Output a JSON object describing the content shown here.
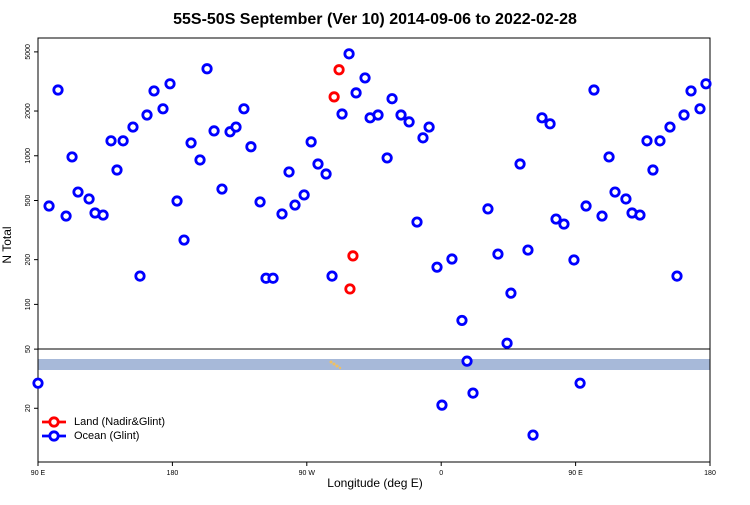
{
  "chart_data": {
    "type": "scatter",
    "title": "55S-50S September (Ver 10)   2014-09-06 to 2022-02-28",
    "x_label": "Longitude (deg E)",
    "y_label": "N Total",
    "xlim": [
      90,
      540
    ],
    "xticks": [
      {
        "value": 90,
        "label": "90 E"
      },
      180,
      {
        "value": 270,
        "label": "90 W"
      },
      {
        "value": 360,
        "label": "0"
      },
      {
        "value": 450,
        "label": "90 E"
      },
      {
        "value": 540,
        "label": "180"
      }
    ],
    "ylim": [
      8.7,
      6200
    ],
    "yticks": [
      20,
      50,
      100,
      200,
      500,
      1000,
      2000,
      5000
    ],
    "log_y": true,
    "legend": "bottom-left",
    "series": [
      {
        "name": "Land (Nadir&Glint)",
        "color": "#ff0000",
        "x": [
          291.6,
          288.3,
          300.9,
          298.9
        ],
        "values": [
          3790,
          2490,
          212,
          127
        ]
      },
      {
        "name": "Ocean (Glint)",
        "color": "#0000ff",
        "x": [
          90,
          97.4,
          103.4,
          108.8,
          112.8,
          116.8,
          124.2,
          128.2,
          133.6,
          138.9,
          142.9,
          147.0,
          153.6,
          158.3,
          163.0,
          167.7,
          173.7,
          178.4,
          183.1,
          187.8,
          192.5,
          198.5,
          203.2,
          207.9,
          213.2,
          218.6,
          222.6,
          227.9,
          232.6,
          238.7,
          242.7,
          247.4,
          253.4,
          258.1,
          262.1,
          268.2,
          272.9,
          277.5,
          282.9,
          286.9,
          293.6,
          298.3,
          303.0,
          309.0,
          312.4,
          317.7,
          323.8,
          327.1,
          333.1,
          338.5,
          343.8,
          347.8,
          351.9,
          357.2,
          360.5,
          367.2,
          373.9,
          377.3,
          381.3,
          391.3,
          398.0,
          404.1,
          406.7,
          412.8,
          418.1,
          421.5,
          427.5,
          432.9,
          436.9,
          442.2,
          448.9,
          453.0,
          457.0,
          462.3,
          467.7,
          472.4,
          476.4,
          483.7,
          487.8,
          493.1,
          497.8,
          501.8,
          506.5,
          513.2,
          517.9,
          522.6,
          527.3,
          533.3,
          537.3
        ],
        "values": [
          29.5,
          459,
          2770,
          393,
          982,
          570,
          512,
          412,
          399,
          1260,
          802,
          1260,
          1560,
          155,
          1880,
          2730,
          2070,
          3050,
          496,
          271,
          1220,
          937,
          3850,
          1470,
          597,
          1450,
          1560,
          2070,
          1150,
          489,
          150,
          150,
          406,
          778,
          466,
          545,
          1240,
          880,
          754,
          155,
          1910,
          4850,
          2650,
          3340,
          1800,
          1880,
          967,
          2420,
          1880,
          1690,
          358,
          1320,
          1560,
          178,
          21.0,
          202,
          78,
          41.5,
          25.3,
          439,
          218,
          54.8,
          119,
          880,
          232,
          13.2,
          1800,
          1640,
          375,
          347,
          199,
          29.5,
          459,
          2770,
          393,
          982,
          570,
          512,
          412,
          399,
          1260,
          802,
          1260,
          1560,
          155,
          1880,
          2730,
          2070,
          3050
        ]
      }
    ]
  }
}
